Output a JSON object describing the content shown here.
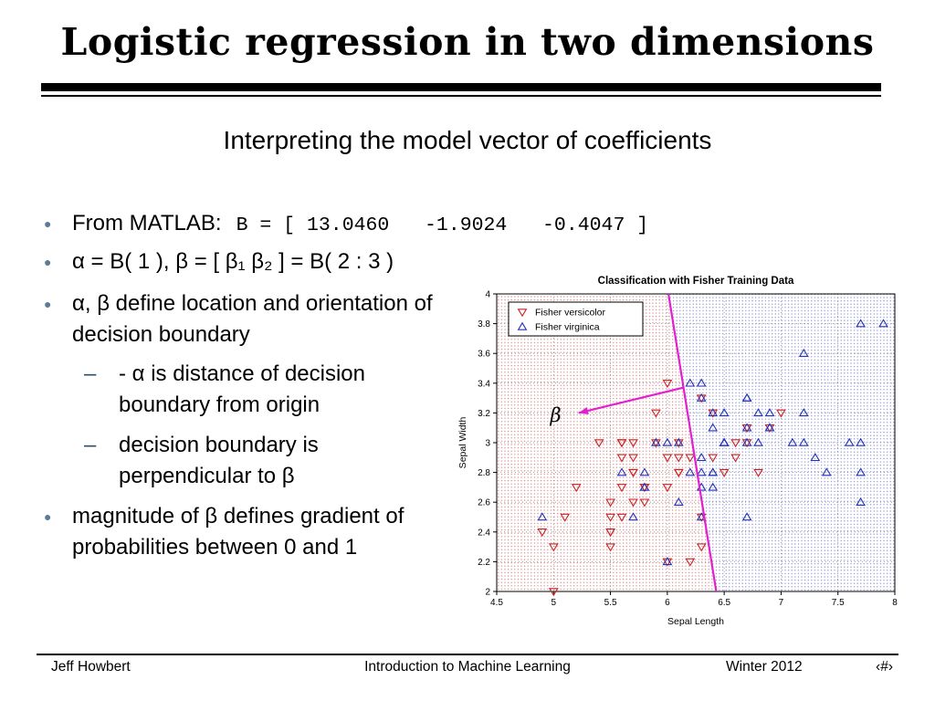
{
  "slide": {
    "title": "Logistic regression in two dimensions",
    "subtitle": "Interpreting the model vector of coefficients"
  },
  "icons": {
    "bullet": "●",
    "dash": "–"
  },
  "bullets": {
    "b1_label": "From MATLAB:",
    "b1_code": "B = [ 13.0460   -1.9024   -0.4047 ]",
    "b2": "α = B( 1 ), β = [ β₁ β₂ ] = B( 2 : 3 )",
    "b3": "α, β define location and orientation of decision boundary",
    "b3_sub1": "- α is distance of decision boundary from origin",
    "b3_sub2": "decision boundary is perpendicular to β",
    "b4": "magnitude of β defines gradient of probabilities between 0 and 1"
  },
  "footer": {
    "author": "Jeff Howbert",
    "course": "Introduction to Machine Learning",
    "term": "Winter 2012",
    "page_number": "‹#›"
  },
  "chart_data": {
    "type": "scatter",
    "title": "Classification with Fisher Training Data",
    "xlabel": "Sepal Length",
    "ylabel": "Sepal Width",
    "xlim": [
      4.5,
      8
    ],
    "ylim": [
      2,
      4
    ],
    "xticks": [
      4.5,
      5,
      5.5,
      6,
      6.5,
      7,
      7.5,
      8
    ],
    "yticks": [
      2,
      2.2,
      2.4,
      2.6,
      2.8,
      3,
      3.2,
      3.4,
      3.6,
      3.8,
      4
    ],
    "grid": true,
    "legend_position": "top-left",
    "series": [
      {
        "name": "Fisher versicolor",
        "marker": "triangle-down",
        "color": "#cc2222",
        "points": [
          [
            7.0,
            3.2
          ],
          [
            6.4,
            3.2
          ],
          [
            6.9,
            3.1
          ],
          [
            5.5,
            2.3
          ],
          [
            6.5,
            2.8
          ],
          [
            5.7,
            2.8
          ],
          [
            6.3,
            3.3
          ],
          [
            4.9,
            2.4
          ],
          [
            6.6,
            2.9
          ],
          [
            5.2,
            2.7
          ],
          [
            5.0,
            2.0
          ],
          [
            5.9,
            3.0
          ],
          [
            6.0,
            2.2
          ],
          [
            6.1,
            2.9
          ],
          [
            5.6,
            2.9
          ],
          [
            6.7,
            3.1
          ],
          [
            5.6,
            3.0
          ],
          [
            5.8,
            2.7
          ],
          [
            6.2,
            2.2
          ],
          [
            5.6,
            2.5
          ],
          [
            5.9,
            3.2
          ],
          [
            6.1,
            2.8
          ],
          [
            6.3,
            2.5
          ],
          [
            6.1,
            2.8
          ],
          [
            6.4,
            2.9
          ],
          [
            6.6,
            3.0
          ],
          [
            6.8,
            2.8
          ],
          [
            6.7,
            3.0
          ],
          [
            6.0,
            2.9
          ],
          [
            5.7,
            2.6
          ],
          [
            5.5,
            2.4
          ],
          [
            5.5,
            2.4
          ],
          [
            5.8,
            2.7
          ],
          [
            6.0,
            2.7
          ],
          [
            5.4,
            3.0
          ],
          [
            6.0,
            3.4
          ],
          [
            6.7,
            3.1
          ],
          [
            6.3,
            2.3
          ],
          [
            5.6,
            3.0
          ],
          [
            5.5,
            2.5
          ],
          [
            5.5,
            2.6
          ],
          [
            6.1,
            3.0
          ],
          [
            5.8,
            2.6
          ],
          [
            5.0,
            2.3
          ],
          [
            5.6,
            2.7
          ],
          [
            5.7,
            3.0
          ],
          [
            5.7,
            2.9
          ],
          [
            6.2,
            2.9
          ],
          [
            5.1,
            2.5
          ],
          [
            5.7,
            2.8
          ]
        ]
      },
      {
        "name": "Fisher virginica",
        "marker": "triangle-up",
        "color": "#2233bb",
        "points": [
          [
            6.3,
            3.3
          ],
          [
            5.8,
            2.7
          ],
          [
            7.1,
            3.0
          ],
          [
            6.3,
            2.9
          ],
          [
            6.5,
            3.0
          ],
          [
            7.6,
            3.0
          ],
          [
            4.9,
            2.5
          ],
          [
            7.3,
            2.9
          ],
          [
            6.7,
            2.5
          ],
          [
            7.2,
            3.6
          ],
          [
            6.5,
            3.2
          ],
          [
            6.4,
            2.7
          ],
          [
            6.8,
            3.0
          ],
          [
            5.7,
            2.5
          ],
          [
            5.8,
            2.8
          ],
          [
            6.4,
            3.2
          ],
          [
            6.5,
            3.0
          ],
          [
            7.7,
            3.8
          ],
          [
            7.7,
            2.6
          ],
          [
            6.0,
            2.2
          ],
          [
            6.9,
            3.2
          ],
          [
            5.6,
            2.8
          ],
          [
            7.7,
            2.8
          ],
          [
            6.3,
            2.7
          ],
          [
            6.7,
            3.3
          ],
          [
            7.2,
            3.2
          ],
          [
            6.2,
            2.8
          ],
          [
            6.1,
            3.0
          ],
          [
            6.4,
            2.8
          ],
          [
            7.2,
            3.0
          ],
          [
            7.4,
            2.8
          ],
          [
            7.9,
            3.8
          ],
          [
            6.4,
            2.8
          ],
          [
            6.3,
            2.8
          ],
          [
            6.1,
            2.6
          ],
          [
            7.7,
            3.0
          ],
          [
            6.3,
            3.4
          ],
          [
            6.4,
            3.1
          ],
          [
            6.0,
            3.0
          ],
          [
            6.9,
            3.1
          ],
          [
            6.7,
            3.1
          ],
          [
            6.9,
            3.1
          ],
          [
            5.8,
            2.7
          ],
          [
            6.8,
            3.2
          ],
          [
            6.7,
            3.3
          ],
          [
            6.7,
            3.0
          ],
          [
            6.3,
            2.5
          ],
          [
            6.5,
            3.0
          ],
          [
            6.2,
            3.4
          ],
          [
            5.9,
            3.0
          ]
        ]
      }
    ],
    "regions": {
      "left_dot_color": "#c65a5a",
      "right_dot_color": "#5a64c6"
    },
    "boundary": {
      "color": "#e320d0",
      "points": [
        [
          6.01,
          4
        ],
        [
          6.43,
          2
        ]
      ]
    },
    "beta_arrow": {
      "from": [
        6.14,
        3.37
      ],
      "to": [
        5.22,
        3.2
      ],
      "label": "β",
      "label_pos": [
        4.97,
        3.14
      ],
      "color": "#e320d0"
    }
  }
}
